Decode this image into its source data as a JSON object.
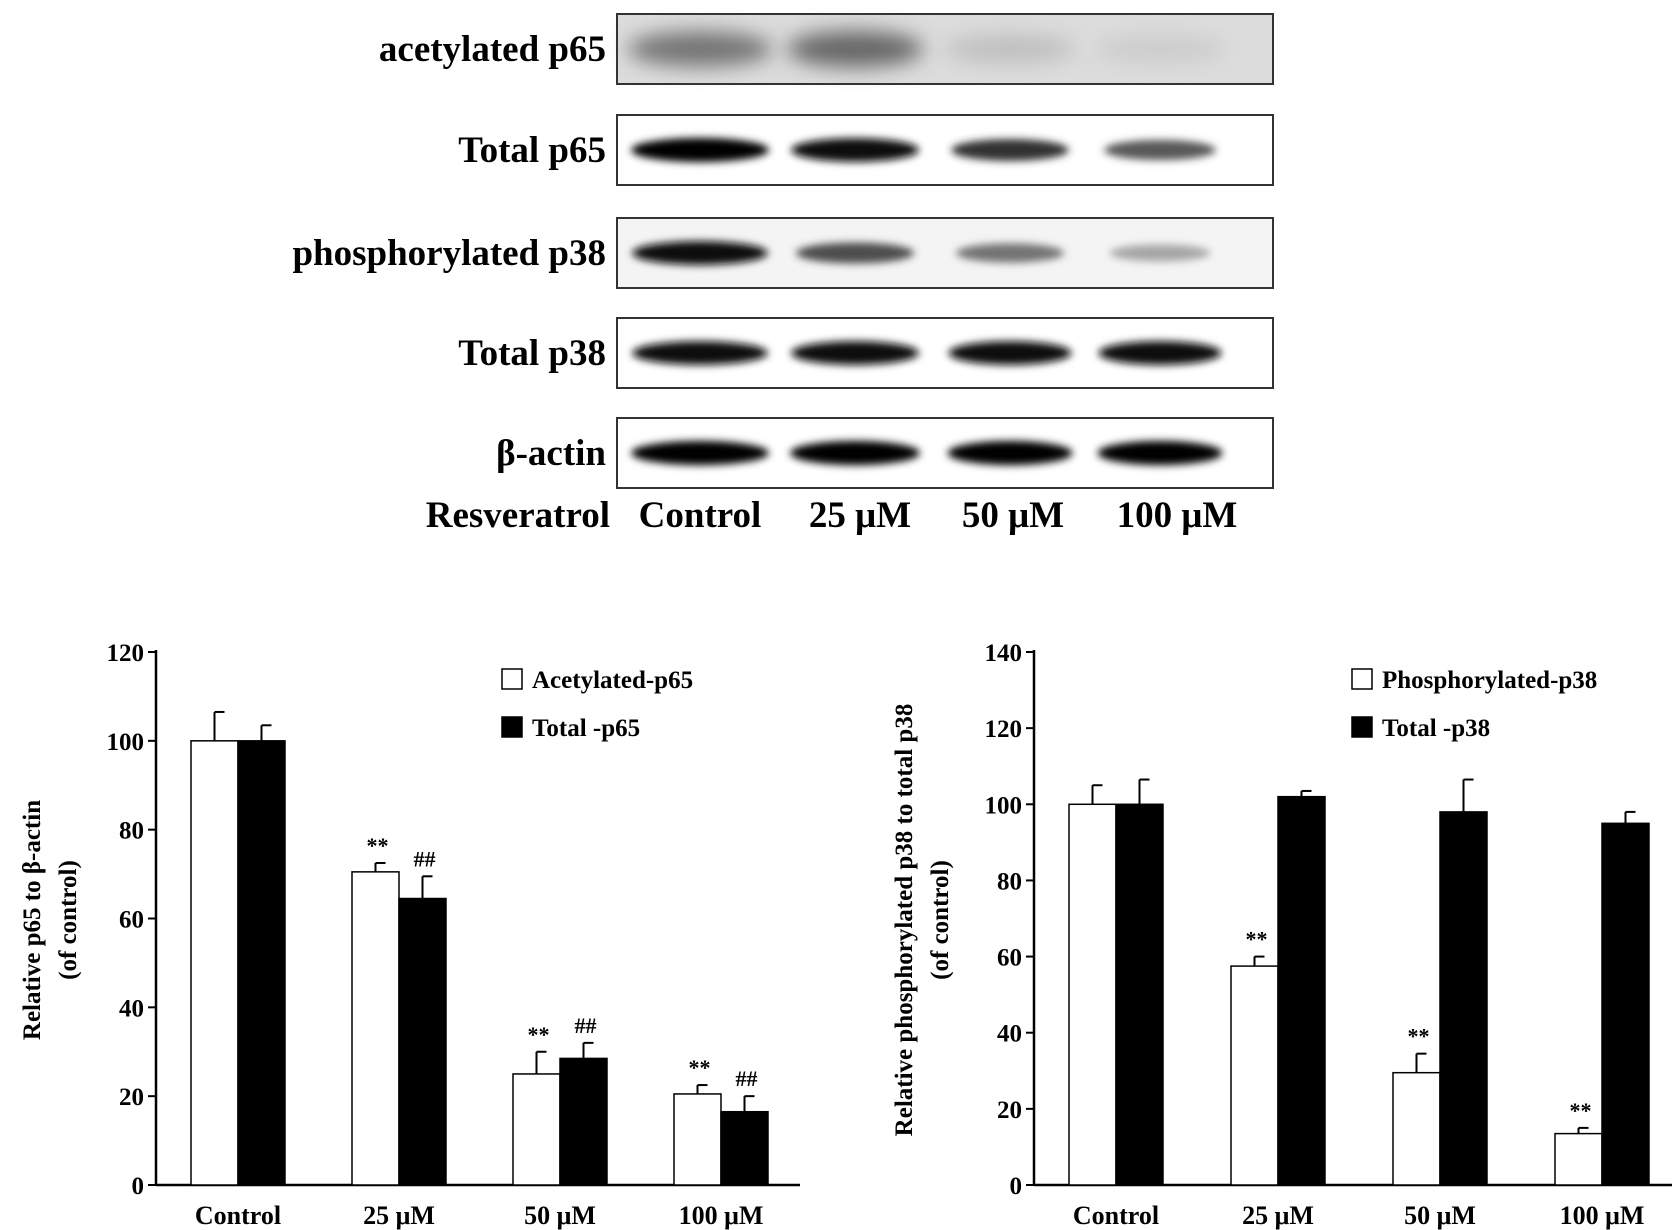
{
  "western_blot": {
    "rows": [
      {
        "label": "acetylated p65",
        "intensities": [
          0.55,
          0.6,
          0.25,
          0.2
        ]
      },
      {
        "label": "Total p65",
        "intensities": [
          1.0,
          0.95,
          0.8,
          0.65
        ]
      },
      {
        "label": "phosphorylated p38",
        "intensities": [
          0.95,
          0.7,
          0.55,
          0.35
        ]
      },
      {
        "label": "Total p38",
        "intensities": [
          0.95,
          0.95,
          0.95,
          0.95
        ]
      },
      {
        "label": "β-actin",
        "intensities": [
          1.0,
          1.0,
          1.0,
          1.0
        ]
      }
    ],
    "lane_row_label": "Resveratrol",
    "lanes": [
      "Control",
      "25 μM",
      "50 μM",
      "100 μM"
    ]
  },
  "chart_data": [
    {
      "type": "bar",
      "categories": [
        "Control",
        "25  μM",
        "50  μM",
        "100  μM"
      ],
      "ylabel": "Relative p65 to β-actin\n(of control)",
      "ylim": [
        0,
        120
      ],
      "yticks": [
        "0",
        "20",
        "40",
        "60",
        "80",
        "100",
        "120"
      ],
      "legend_position": "top-right",
      "series": [
        {
          "name": "Acetylated-p65",
          "values": [
            100,
            70.5,
            25,
            20.5
          ],
          "errors": [
            6.5,
            2,
            5,
            2
          ],
          "significance": [
            "",
            "**",
            "**",
            "**"
          ],
          "color": "#ffffff"
        },
        {
          "name": "Total -p65",
          "values": [
            100,
            64.5,
            28.5,
            16.5
          ],
          "errors": [
            3.5,
            5,
            3.5,
            3.5
          ],
          "significance": [
            "",
            "##",
            "##",
            "##"
          ],
          "color": "#000000"
        }
      ]
    },
    {
      "type": "bar",
      "categories": [
        "Control",
        "25  μM",
        "50  μM",
        "100  μM"
      ],
      "ylabel": "Relative phosphorylated p38 to total p38\n(of control)",
      "ylim": [
        0,
        140
      ],
      "yticks": [
        "0",
        "20",
        "40",
        "60",
        "80",
        "100",
        "120",
        "140"
      ],
      "legend_position": "top-right",
      "series": [
        {
          "name": "Phosphorylated-p38",
          "values": [
            100,
            57.5,
            29.5,
            13.5
          ],
          "errors": [
            5,
            2.5,
            5,
            1.5
          ],
          "significance": [
            "",
            "**",
            "**",
            "**"
          ],
          "color": "#ffffff"
        },
        {
          "name": "Total -p38",
          "values": [
            100,
            102,
            98,
            95
          ],
          "errors": [
            6.5,
            1.5,
            8.5,
            3
          ],
          "significance": [
            "",
            "",
            "",
            ""
          ],
          "color": "#000000"
        }
      ]
    }
  ]
}
